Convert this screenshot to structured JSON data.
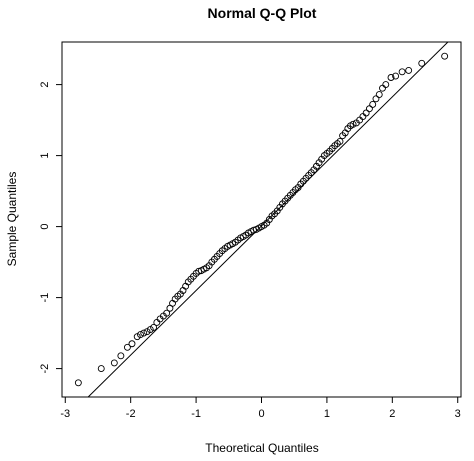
{
  "chart_data": {
    "type": "scatter",
    "title": "Normal Q-Q Plot",
    "xlabel": "Theoretical Quantiles",
    "ylabel": "Sample Quantiles",
    "xlim": [
      -3.05,
      3.05
    ],
    "ylim": [
      -2.4,
      2.6
    ],
    "x_ticks": [
      -3,
      -2,
      -1,
      0,
      1,
      2,
      3
    ],
    "y_ticks": [
      -2,
      -1,
      0,
      1,
      2
    ],
    "x_tick_labels": [
      "-3",
      "-2",
      "-1",
      "0",
      "1",
      "2",
      "3"
    ],
    "y_tick_labels": [
      "-2",
      "-1",
      "0",
      "1",
      "2"
    ],
    "grid": false,
    "marker": "open-circle",
    "reference_line": {
      "from": [
        -2.65,
        -2.4
      ],
      "to": [
        2.85,
        2.6
      ]
    },
    "points": {
      "x": [
        -2.8,
        -2.45,
        -2.25,
        -2.15,
        -2.05,
        -1.98,
        -1.9,
        -1.85,
        -1.8,
        -1.75,
        -1.7,
        -1.65,
        -1.6,
        -1.55,
        -1.5,
        -1.45,
        -1.4,
        -1.36,
        -1.32,
        -1.28,
        -1.24,
        -1.2,
        -1.16,
        -1.12,
        -1.08,
        -1.04,
        -1.0,
        -0.96,
        -0.92,
        -0.88,
        -0.84,
        -0.8,
        -0.76,
        -0.72,
        -0.68,
        -0.64,
        -0.6,
        -0.56,
        -0.52,
        -0.48,
        -0.44,
        -0.4,
        -0.36,
        -0.32,
        -0.28,
        -0.24,
        -0.2,
        -0.16,
        -0.12,
        -0.08,
        -0.04,
        0.0,
        0.04,
        0.08,
        0.12,
        0.16,
        0.2,
        0.24,
        0.28,
        0.32,
        0.36,
        0.4,
        0.44,
        0.48,
        0.52,
        0.56,
        0.6,
        0.64,
        0.68,
        0.72,
        0.76,
        0.8,
        0.84,
        0.88,
        0.92,
        0.96,
        1.0,
        1.04,
        1.08,
        1.12,
        1.16,
        1.2,
        1.24,
        1.28,
        1.32,
        1.36,
        1.4,
        1.45,
        1.5,
        1.55,
        1.6,
        1.65,
        1.7,
        1.75,
        1.8,
        1.85,
        1.9,
        1.98,
        2.05,
        2.15,
        2.25,
        2.45,
        2.8
      ],
      "y": [
        -2.2,
        -2.0,
        -1.92,
        -1.82,
        -1.7,
        -1.65,
        -1.55,
        -1.52,
        -1.5,
        -1.48,
        -1.45,
        -1.42,
        -1.35,
        -1.3,
        -1.26,
        -1.22,
        -1.15,
        -1.08,
        -1.02,
        -0.98,
        -0.95,
        -0.9,
        -0.84,
        -0.78,
        -0.74,
        -0.7,
        -0.66,
        -0.63,
        -0.62,
        -0.6,
        -0.58,
        -0.55,
        -0.5,
        -0.46,
        -0.42,
        -0.38,
        -0.34,
        -0.31,
        -0.28,
        -0.26,
        -0.24,
        -0.22,
        -0.19,
        -0.16,
        -0.14,
        -0.12,
        -0.09,
        -0.07,
        -0.05,
        -0.04,
        -0.02,
        0.0,
        0.02,
        0.05,
        0.1,
        0.15,
        0.18,
        0.22,
        0.27,
        0.32,
        0.36,
        0.4,
        0.44,
        0.48,
        0.52,
        0.55,
        0.6,
        0.64,
        0.68,
        0.72,
        0.76,
        0.8,
        0.85,
        0.9,
        0.95,
        1.0,
        1.03,
        1.06,
        1.1,
        1.14,
        1.17,
        1.2,
        1.28,
        1.32,
        1.38,
        1.42,
        1.44,
        1.46,
        1.5,
        1.55,
        1.6,
        1.66,
        1.72,
        1.8,
        1.86,
        1.95,
        2.0,
        2.1,
        2.12,
        2.18,
        2.2,
        2.3,
        2.4
      ]
    }
  }
}
